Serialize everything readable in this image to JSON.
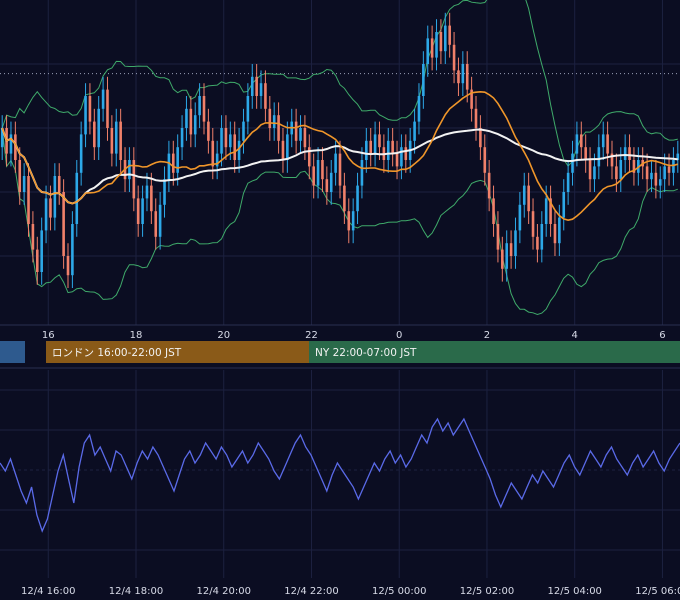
{
  "colors": {
    "background": "#0b0d22",
    "grid": "#1c2140",
    "up_candle": "#2da8e8",
    "down_candle": "#f0806a",
    "bollinger": "#3faa6a",
    "ma_short": "#f0962a",
    "ma_long": "#f2f2f2",
    "oscillator": "#5a6ae8",
    "session_tokyo": "#2e5a8e",
    "session_london": "#8a5a18",
    "session_ny": "#2a6a4a"
  },
  "sessions": [
    {
      "id": "tokyo",
      "label": ""
    },
    {
      "id": "london",
      "label": "ロンドン 16:00-22:00 JST"
    },
    {
      "id": "ny",
      "label": "NY 22:00-07:00 JST"
    }
  ],
  "chart_data": {
    "type": "candlestick",
    "x_ticks_top": [
      "16",
      "18",
      "20",
      "22",
      "0",
      "2",
      "4",
      "6"
    ],
    "x_ticks_bottom": [
      "12/4 16:00",
      "12/4 18:00",
      "12/4 20:00",
      "12/4 22:00",
      "12/5 00:00",
      "12/5 02:00",
      "12/5 04:00",
      "12/5 06:00"
    ],
    "x_range_hours": [
      14.9,
      30.4
    ],
    "y_range": [
      0,
      100
    ],
    "reference_level": 77,
    "grid": true,
    "candles": [
      {
        "o": 54,
        "c": 60
      },
      {
        "o": 60,
        "c": 52
      },
      {
        "o": 52,
        "c": 58
      },
      {
        "o": 58,
        "c": 50
      },
      {
        "o": 50,
        "c": 40
      },
      {
        "o": 40,
        "c": 45
      },
      {
        "o": 45,
        "c": 30
      },
      {
        "o": 30,
        "c": 22
      },
      {
        "o": 22,
        "c": 15
      },
      {
        "o": 15,
        "c": 28
      },
      {
        "o": 28,
        "c": 38
      },
      {
        "o": 38,
        "c": 32
      },
      {
        "o": 32,
        "c": 45
      },
      {
        "o": 45,
        "c": 40
      },
      {
        "o": 40,
        "c": 20
      },
      {
        "o": 20,
        "c": 14
      },
      {
        "o": 14,
        "c": 30
      },
      {
        "o": 30,
        "c": 46
      },
      {
        "o": 46,
        "c": 58
      },
      {
        "o": 58,
        "c": 70
      },
      {
        "o": 70,
        "c": 62
      },
      {
        "o": 62,
        "c": 54
      },
      {
        "o": 54,
        "c": 66
      },
      {
        "o": 66,
        "c": 72
      },
      {
        "o": 72,
        "c": 60
      },
      {
        "o": 60,
        "c": 52
      },
      {
        "o": 52,
        "c": 62
      },
      {
        "o": 62,
        "c": 50
      },
      {
        "o": 50,
        "c": 44
      },
      {
        "o": 44,
        "c": 50
      },
      {
        "o": 50,
        "c": 38
      },
      {
        "o": 38,
        "c": 30
      },
      {
        "o": 30,
        "c": 38
      },
      {
        "o": 38,
        "c": 42
      },
      {
        "o": 42,
        "c": 34
      },
      {
        "o": 34,
        "c": 26
      },
      {
        "o": 26,
        "c": 36
      },
      {
        "o": 36,
        "c": 44
      },
      {
        "o": 44,
        "c": 52
      },
      {
        "o": 52,
        "c": 46
      },
      {
        "o": 46,
        "c": 54
      },
      {
        "o": 54,
        "c": 60
      },
      {
        "o": 60,
        "c": 66
      },
      {
        "o": 66,
        "c": 58
      },
      {
        "o": 58,
        "c": 64
      },
      {
        "o": 64,
        "c": 70
      },
      {
        "o": 70,
        "c": 62
      },
      {
        "o": 62,
        "c": 56
      },
      {
        "o": 56,
        "c": 48
      },
      {
        "o": 48,
        "c": 52
      },
      {
        "o": 52,
        "c": 60
      },
      {
        "o": 60,
        "c": 54
      },
      {
        "o": 54,
        "c": 58
      },
      {
        "o": 58,
        "c": 50
      },
      {
        "o": 50,
        "c": 56
      },
      {
        "o": 56,
        "c": 62
      },
      {
        "o": 62,
        "c": 70
      },
      {
        "o": 70,
        "c": 76
      },
      {
        "o": 76,
        "c": 70
      },
      {
        "o": 70,
        "c": 74
      },
      {
        "o": 74,
        "c": 66
      },
      {
        "o": 66,
        "c": 60
      },
      {
        "o": 60,
        "c": 64
      },
      {
        "o": 64,
        "c": 56
      },
      {
        "o": 56,
        "c": 50
      },
      {
        "o": 50,
        "c": 58
      },
      {
        "o": 58,
        "c": 62
      },
      {
        "o": 62,
        "c": 56
      },
      {
        "o": 56,
        "c": 60
      },
      {
        "o": 60,
        "c": 54
      },
      {
        "o": 54,
        "c": 48
      },
      {
        "o": 48,
        "c": 42
      },
      {
        "o": 42,
        "c": 50
      },
      {
        "o": 50,
        "c": 44
      },
      {
        "o": 44,
        "c": 40
      },
      {
        "o": 40,
        "c": 46
      },
      {
        "o": 46,
        "c": 52
      },
      {
        "o": 52,
        "c": 42
      },
      {
        "o": 42,
        "c": 34
      },
      {
        "o": 34,
        "c": 28
      },
      {
        "o": 28,
        "c": 34
      },
      {
        "o": 34,
        "c": 42
      },
      {
        "o": 42,
        "c": 50
      },
      {
        "o": 50,
        "c": 56
      },
      {
        "o": 56,
        "c": 52
      },
      {
        "o": 52,
        "c": 58
      },
      {
        "o": 58,
        "c": 54
      },
      {
        "o": 54,
        "c": 50
      },
      {
        "o": 50,
        "c": 56
      },
      {
        "o": 56,
        "c": 52
      },
      {
        "o": 52,
        "c": 48
      },
      {
        "o": 48,
        "c": 54
      },
      {
        "o": 54,
        "c": 50
      },
      {
        "o": 50,
        "c": 56
      },
      {
        "o": 56,
        "c": 62
      },
      {
        "o": 62,
        "c": 70
      },
      {
        "o": 70,
        "c": 80
      },
      {
        "o": 80,
        "c": 88
      },
      {
        "o": 88,
        "c": 82
      },
      {
        "o": 82,
        "c": 90
      },
      {
        "o": 90,
        "c": 84
      },
      {
        "o": 84,
        "c": 92
      },
      {
        "o": 92,
        "c": 86
      },
      {
        "o": 86,
        "c": 78
      },
      {
        "o": 78,
        "c": 74
      },
      {
        "o": 74,
        "c": 80
      },
      {
        "o": 80,
        "c": 72
      },
      {
        "o": 72,
        "c": 66
      },
      {
        "o": 66,
        "c": 60
      },
      {
        "o": 60,
        "c": 54
      },
      {
        "o": 54,
        "c": 46
      },
      {
        "o": 46,
        "c": 38
      },
      {
        "o": 38,
        "c": 30
      },
      {
        "o": 30,
        "c": 22
      },
      {
        "o": 22,
        "c": 16
      },
      {
        "o": 16,
        "c": 24
      },
      {
        "o": 24,
        "c": 20
      },
      {
        "o": 20,
        "c": 28
      },
      {
        "o": 28,
        "c": 36
      },
      {
        "o": 36,
        "c": 42
      },
      {
        "o": 42,
        "c": 34
      },
      {
        "o": 34,
        "c": 26
      },
      {
        "o": 26,
        "c": 22
      },
      {
        "o": 22,
        "c": 30
      },
      {
        "o": 30,
        "c": 38
      },
      {
        "o": 38,
        "c": 30
      },
      {
        "o": 30,
        "c": 24
      },
      {
        "o": 24,
        "c": 32
      },
      {
        "o": 32,
        "c": 40
      },
      {
        "o": 40,
        "c": 46
      },
      {
        "o": 46,
        "c": 52
      },
      {
        "o": 52,
        "c": 58
      },
      {
        "o": 58,
        "c": 54
      },
      {
        "o": 54,
        "c": 50
      },
      {
        "o": 50,
        "c": 44
      },
      {
        "o": 44,
        "c": 48
      },
      {
        "o": 48,
        "c": 54
      },
      {
        "o": 54,
        "c": 58
      },
      {
        "o": 58,
        "c": 52
      },
      {
        "o": 52,
        "c": 48
      },
      {
        "o": 48,
        "c": 44
      },
      {
        "o": 44,
        "c": 50
      },
      {
        "o": 50,
        "c": 54
      },
      {
        "o": 54,
        "c": 50
      },
      {
        "o": 50,
        "c": 46
      },
      {
        "o": 46,
        "c": 50
      },
      {
        "o": 50,
        "c": 48
      },
      {
        "o": 48,
        "c": 44
      },
      {
        "o": 44,
        "c": 46
      },
      {
        "o": 46,
        "c": 42
      },
      {
        "o": 42,
        "c": 44
      },
      {
        "o": 44,
        "c": 48
      },
      {
        "o": 48,
        "c": 46
      },
      {
        "o": 46,
        "c": 50
      },
      {
        "o": 50,
        "c": 52
      }
    ],
    "oscillator": [
      56,
      52,
      58,
      50,
      42,
      36,
      44,
      30,
      22,
      28,
      40,
      52,
      60,
      48,
      36,
      54,
      66,
      70,
      60,
      64,
      58,
      52,
      62,
      60,
      54,
      48,
      56,
      62,
      58,
      64,
      60,
      54,
      48,
      42,
      50,
      58,
      62,
      56,
      60,
      66,
      62,
      58,
      64,
      60,
      54,
      58,
      62,
      56,
      60,
      66,
      62,
      58,
      52,
      48,
      54,
      60,
      66,
      70,
      64,
      60,
      54,
      48,
      42,
      50,
      56,
      52,
      48,
      44,
      38,
      44,
      50,
      56,
      52,
      58,
      62,
      56,
      60,
      54,
      58,
      64,
      70,
      66,
      74,
      78,
      72,
      76,
      70,
      74,
      78,
      72,
      66,
      60,
      54,
      48,
      40,
      34,
      40,
      46,
      42,
      38,
      44,
      50,
      46,
      52,
      48,
      44,
      50,
      56,
      60,
      54,
      50,
      56,
      62,
      58,
      54,
      60,
      64,
      58,
      54,
      50,
      56,
      60,
      54,
      58,
      62,
      56,
      52,
      58,
      62,
      66
    ]
  }
}
